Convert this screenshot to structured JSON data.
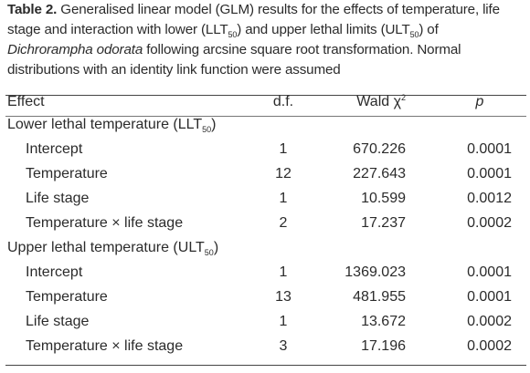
{
  "caption": {
    "label": "Table 2.",
    "text_part1": " Generalised linear model (GLM) results for the effects of temperature, life stage and interaction with lower (LLT",
    "sub1": "50",
    "text_part2": ") and upper lethal limits (ULT",
    "sub2": "50",
    "text_part3": ") of ",
    "species": "Dichrorampha odorata",
    "text_part4": " following arcsine square root transformation. Normal distributions with an identity link function were assumed"
  },
  "headers": {
    "effect": "Effect",
    "df": "d.f.",
    "wald": "Wald χ",
    "wald_sup": "2",
    "p": "p"
  },
  "sections": [
    {
      "title": "Lower lethal temperature (LLT",
      "sub": "50",
      "close": ")",
      "rows": [
        {
          "effect": "Intercept",
          "df": "1",
          "wald": "670.226",
          "p": "0.0001"
        },
        {
          "effect": "Temperature",
          "df": "12",
          "wald": "227.643",
          "p": "0.0001"
        },
        {
          "effect": "Life stage",
          "df": "1",
          "wald": "10.599",
          "p": "0.0012"
        },
        {
          "effect": "Temperature × life stage",
          "df": "2",
          "wald": "17.237",
          "p": "0.0002"
        }
      ]
    },
    {
      "title": "Upper lethal temperature (ULT",
      "sub": "50",
      "close": ")",
      "rows": [
        {
          "effect": "Intercept",
          "df": "1",
          "wald": "1369.023",
          "p": "0.0001"
        },
        {
          "effect": "Temperature",
          "df": "13",
          "wald": "481.955",
          "p": "0.0001"
        },
        {
          "effect": "Life stage",
          "df": "1",
          "wald": "13.672",
          "p": "0.0002"
        },
        {
          "effect": "Temperature × life stage",
          "df": "3",
          "wald": "17.196",
          "p": "0.0002"
        }
      ]
    }
  ]
}
